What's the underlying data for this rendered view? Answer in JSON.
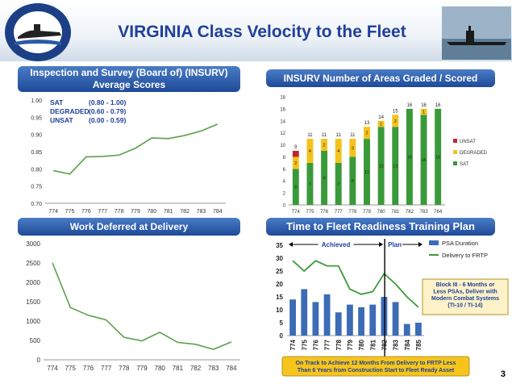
{
  "title": "VIRGINIA Class Velocity to the Fleet",
  "logo": {
    "ring_top": "VIRGINIA CLASS SUBMARINE",
    "ring_bottom": "BATTLESPACE DOMINANCE"
  },
  "page_number": "3",
  "panels": {
    "insurv_scores_title": "Inspection and Survey (Board of) (INSURV) Average Scores",
    "insurv_areas_title": "INSURV Number of Areas Graded / Scored",
    "work_deferred_title": "Work Deferred at Delivery",
    "readiness_title": "Time to Fleet Readiness Training Plan"
  },
  "chart_data": [
    {
      "type": "line",
      "categories": [
        "774",
        "775",
        "776",
        "777",
        "778",
        "779",
        "780",
        "781",
        "782",
        "783",
        "784"
      ],
      "values": [
        0.795,
        0.785,
        0.835,
        0.836,
        0.84,
        0.86,
        0.89,
        0.888,
        0.897,
        0.91,
        0.93
      ],
      "ylim": [
        0.7,
        1.0
      ],
      "yticks": [
        "0.70",
        "0.75",
        "0.80",
        "0.85",
        "0.90",
        "0.95",
        "1.00"
      ],
      "color": "#5aa04a",
      "legend": [
        {
          "label": "SAT",
          "range": "(0.80 - 1.00)"
        },
        {
          "label": "DEGRADED",
          "range": "(0.60 - 0.79)"
        },
        {
          "label": "UNSAT",
          "range": "(0.00 - 0.59)"
        }
      ]
    },
    {
      "type": "bar",
      "stacked": true,
      "categories": [
        "774",
        "775",
        "776",
        "777",
        "778",
        "779",
        "780",
        "781",
        "782",
        "783",
        "784"
      ],
      "ylim": [
        0,
        18
      ],
      "yticks": [
        "0",
        "2",
        "4",
        "6",
        "8",
        "10",
        "12",
        "14",
        "16",
        "18"
      ],
      "series": [
        {
          "name": "SAT",
          "color": "#3a9a3a",
          "values": [
            6,
            7,
            9,
            7,
            8,
            11,
            13,
            13,
            16,
            15,
            16
          ],
          "labels": [
            "6",
            "7",
            "9",
            "7",
            "8",
            "11",
            "13",
            "13",
            "16",
            "15",
            "16"
          ]
        },
        {
          "name": "DEGRADED",
          "color": "#f4c21c",
          "values": [
            2,
            4,
            2,
            4,
            3,
            2,
            1,
            2,
            0,
            1,
            0
          ],
          "labels": [
            "2",
            "4",
            "2",
            "4",
            "3",
            "2",
            "1",
            "2",
            "",
            "1",
            ""
          ]
        },
        {
          "name": "UNSAT",
          "color": "#c0282c",
          "values": [
            1,
            0,
            0,
            0,
            0,
            0,
            0,
            0,
            0,
            0,
            0
          ],
          "labels": [
            "",
            "",
            "",
            "",
            "",
            "",
            "",
            "",
            "",
            "",
            ""
          ]
        }
      ],
      "totals": [
        "9",
        "11",
        "11",
        "11",
        "11",
        "13",
        "14",
        "15",
        "16",
        "16",
        "16"
      ],
      "legend": [
        "UNSAT",
        "DEGRADED",
        "SAT"
      ]
    },
    {
      "type": "line",
      "categories": [
        "774",
        "775",
        "776",
        "777",
        "778",
        "779",
        "780",
        "781",
        "782",
        "783",
        "784"
      ],
      "values": [
        2500,
        1350,
        1150,
        1030,
        580,
        490,
        710,
        450,
        400,
        270,
        460
      ],
      "ylim": [
        0,
        3000
      ],
      "yticks": [
        "0",
        "500",
        "1000",
        "1500",
        "2000",
        "2500",
        "3000"
      ],
      "color": "#5aa04a"
    },
    {
      "type": "bar",
      "categories": [
        "774",
        "775",
        "776",
        "777",
        "778",
        "779",
        "780",
        "781",
        "782",
        "783",
        "784",
        "785"
      ],
      "ylim": [
        0,
        35
      ],
      "yticks": [
        "0",
        "5",
        "10",
        "15",
        "20",
        "25",
        "30",
        "35"
      ],
      "series": [
        {
          "name": "PSA Duration",
          "type": "bar",
          "color": "#3d6cb6",
          "values": [
            14,
            18,
            13,
            16,
            9,
            12,
            11,
            12,
            15,
            13,
            4.5,
            5
          ]
        },
        {
          "name": "Delivery to FRTP",
          "type": "line",
          "color": "#3a9a3a",
          "values": [
            29,
            25,
            29,
            27,
            27,
            18,
            16,
            17,
            24,
            20,
            15,
            11
          ]
        }
      ],
      "labels": {
        "achieved": "Achieved",
        "plan": "Plan"
      },
      "annotations": {
        "block": "Block III - 6 Months or Less PSAs, Deliver with Modern Combat Systems (TI-10 / TI-14)",
        "footer": "On Track to Achieve 12 Months From Delivery to FRTP Less Than 6 Years from Construction Start to Fleet Ready Asset"
      }
    }
  ]
}
